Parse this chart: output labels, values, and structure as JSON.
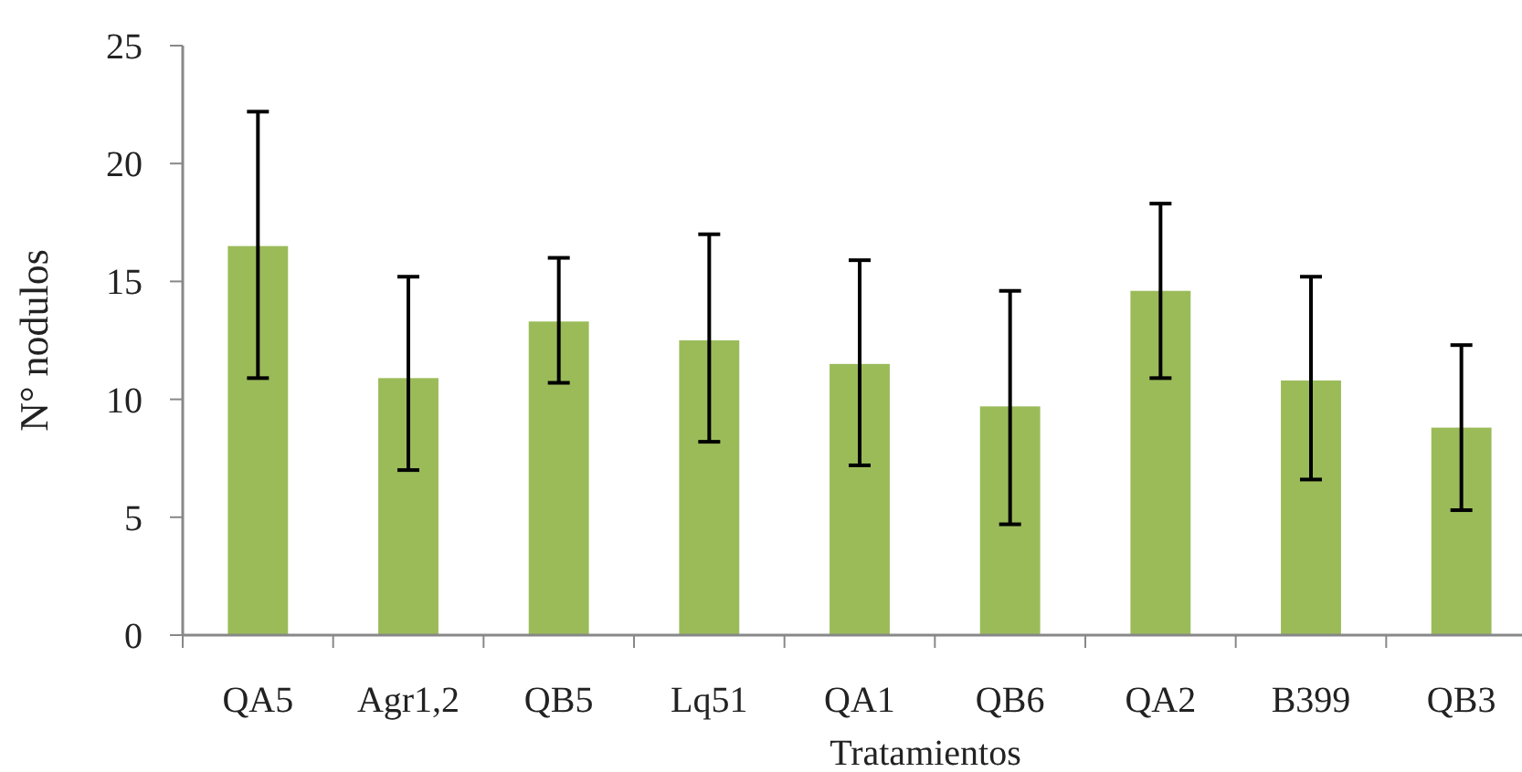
{
  "chart_data": {
    "type": "bar",
    "xlabel": "Tratamientos",
    "ylabel": "N° nodulos",
    "categories": [
      "QA5",
      "Agr1,2",
      "QB5",
      "Lq51",
      "QA1",
      "QB6",
      "QA2",
      "B399",
      "QB3"
    ],
    "values": [
      16.5,
      10.9,
      13.3,
      12.5,
      11.5,
      9.7,
      14.6,
      10.8,
      8.8
    ],
    "errors": [
      [
        10.9,
        22.2
      ],
      [
        7.0,
        15.2
      ],
      [
        10.7,
        16.0
      ],
      [
        8.2,
        17.0
      ],
      [
        7.2,
        15.9
      ],
      [
        4.7,
        14.6
      ],
      [
        10.9,
        18.3
      ],
      [
        6.6,
        15.2
      ],
      [
        5.3,
        12.3
      ]
    ],
    "color": "#9bbb59",
    "ylim": [
      0,
      25
    ],
    "yticks": [
      0,
      5,
      10,
      15,
      20,
      25
    ],
    "grid": false
  }
}
